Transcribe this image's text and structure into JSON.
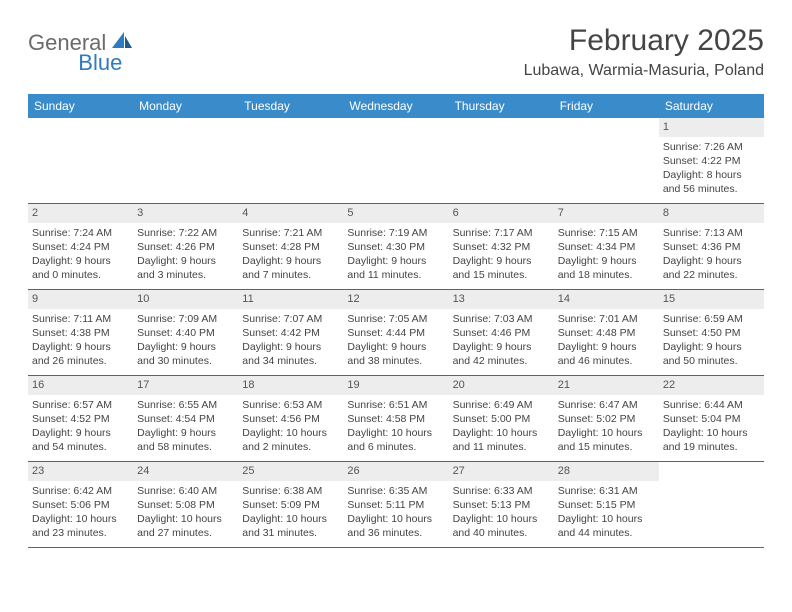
{
  "brand": {
    "part1": "General",
    "part2": "Blue"
  },
  "title": "February 2025",
  "location": "Lubawa, Warmia-Masuria, Poland",
  "header_bg": "#3a8bc9",
  "rule_color": "#3a6b95",
  "daynum_bg": "#ededed",
  "text_color": "#444444",
  "weekdays": [
    "Sunday",
    "Monday",
    "Tuesday",
    "Wednesday",
    "Thursday",
    "Friday",
    "Saturday"
  ],
  "weeks": [
    [
      null,
      null,
      null,
      null,
      null,
      null,
      {
        "n": "1",
        "sr": "7:26 AM",
        "ss": "4:22 PM",
        "dl": "8 hours and 56 minutes."
      }
    ],
    [
      {
        "n": "2",
        "sr": "7:24 AM",
        "ss": "4:24 PM",
        "dl": "9 hours and 0 minutes."
      },
      {
        "n": "3",
        "sr": "7:22 AM",
        "ss": "4:26 PM",
        "dl": "9 hours and 3 minutes."
      },
      {
        "n": "4",
        "sr": "7:21 AM",
        "ss": "4:28 PM",
        "dl": "9 hours and 7 minutes."
      },
      {
        "n": "5",
        "sr": "7:19 AM",
        "ss": "4:30 PM",
        "dl": "9 hours and 11 minutes."
      },
      {
        "n": "6",
        "sr": "7:17 AM",
        "ss": "4:32 PM",
        "dl": "9 hours and 15 minutes."
      },
      {
        "n": "7",
        "sr": "7:15 AM",
        "ss": "4:34 PM",
        "dl": "9 hours and 18 minutes."
      },
      {
        "n": "8",
        "sr": "7:13 AM",
        "ss": "4:36 PM",
        "dl": "9 hours and 22 minutes."
      }
    ],
    [
      {
        "n": "9",
        "sr": "7:11 AM",
        "ss": "4:38 PM",
        "dl": "9 hours and 26 minutes."
      },
      {
        "n": "10",
        "sr": "7:09 AM",
        "ss": "4:40 PM",
        "dl": "9 hours and 30 minutes."
      },
      {
        "n": "11",
        "sr": "7:07 AM",
        "ss": "4:42 PM",
        "dl": "9 hours and 34 minutes."
      },
      {
        "n": "12",
        "sr": "7:05 AM",
        "ss": "4:44 PM",
        "dl": "9 hours and 38 minutes."
      },
      {
        "n": "13",
        "sr": "7:03 AM",
        "ss": "4:46 PM",
        "dl": "9 hours and 42 minutes."
      },
      {
        "n": "14",
        "sr": "7:01 AM",
        "ss": "4:48 PM",
        "dl": "9 hours and 46 minutes."
      },
      {
        "n": "15",
        "sr": "6:59 AM",
        "ss": "4:50 PM",
        "dl": "9 hours and 50 minutes."
      }
    ],
    [
      {
        "n": "16",
        "sr": "6:57 AM",
        "ss": "4:52 PM",
        "dl": "9 hours and 54 minutes."
      },
      {
        "n": "17",
        "sr": "6:55 AM",
        "ss": "4:54 PM",
        "dl": "9 hours and 58 minutes."
      },
      {
        "n": "18",
        "sr": "6:53 AM",
        "ss": "4:56 PM",
        "dl": "10 hours and 2 minutes."
      },
      {
        "n": "19",
        "sr": "6:51 AM",
        "ss": "4:58 PM",
        "dl": "10 hours and 6 minutes."
      },
      {
        "n": "20",
        "sr": "6:49 AM",
        "ss": "5:00 PM",
        "dl": "10 hours and 11 minutes."
      },
      {
        "n": "21",
        "sr": "6:47 AM",
        "ss": "5:02 PM",
        "dl": "10 hours and 15 minutes."
      },
      {
        "n": "22",
        "sr": "6:44 AM",
        "ss": "5:04 PM",
        "dl": "10 hours and 19 minutes."
      }
    ],
    [
      {
        "n": "23",
        "sr": "6:42 AM",
        "ss": "5:06 PM",
        "dl": "10 hours and 23 minutes."
      },
      {
        "n": "24",
        "sr": "6:40 AM",
        "ss": "5:08 PM",
        "dl": "10 hours and 27 minutes."
      },
      {
        "n": "25",
        "sr": "6:38 AM",
        "ss": "5:09 PM",
        "dl": "10 hours and 31 minutes."
      },
      {
        "n": "26",
        "sr": "6:35 AM",
        "ss": "5:11 PM",
        "dl": "10 hours and 36 minutes."
      },
      {
        "n": "27",
        "sr": "6:33 AM",
        "ss": "5:13 PM",
        "dl": "10 hours and 40 minutes."
      },
      {
        "n": "28",
        "sr": "6:31 AM",
        "ss": "5:15 PM",
        "dl": "10 hours and 44 minutes."
      },
      null
    ]
  ],
  "labels": {
    "sunrise": "Sunrise:",
    "sunset": "Sunset:",
    "daylight": "Daylight:"
  }
}
